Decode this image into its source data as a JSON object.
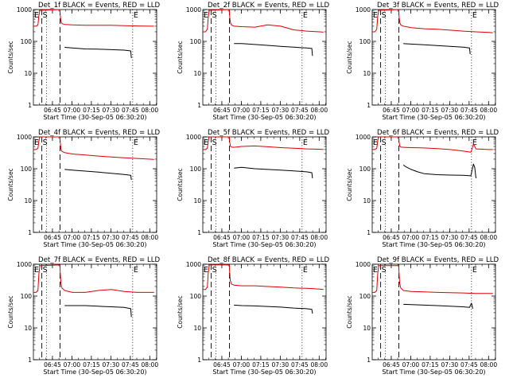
{
  "colors": {
    "events": "#000000",
    "lld": "#e00000",
    "axis": "#000000"
  },
  "shared": {
    "xlabel": "Start Time (30-Sep-05 06:30:20)",
    "ylabel": "Counts/sec",
    "x_tick_labels": [
      "06:45",
      "07:00",
      "07:15",
      "07:30",
      "07:45",
      "08:00"
    ],
    "y_tick_labels": [
      "1",
      "10",
      "100",
      "1000"
    ],
    "marker_labels": {
      "left_E": "E",
      "S": "S",
      "right_E": "E"
    }
  },
  "chart_data": [
    {
      "type": "line",
      "title": "Det_1f BLACK = Events, RED = LLD",
      "xlabel": "Start Time (30-Sep-05 06:30:20)",
      "ylabel": "Counts/sec",
      "y_scale": "log",
      "ylim": [
        1,
        1000
      ],
      "xlim_minutes": [
        0,
        95
      ],
      "markers": {
        "dashed": [
          6.5,
          20.5
        ],
        "dotted": [
          10.2,
          76.5
        ]
      },
      "series": [
        {
          "color": "red",
          "x": [
            0,
            2,
            3.5,
            4.2,
            5,
            6.2,
            20.4,
            20.7,
            21.2,
            22,
            24,
            30,
            40,
            50,
            60,
            70,
            80,
            90,
            93
          ],
          "y": [
            300,
            300,
            330,
            650,
            950,
            950,
            1000,
            650,
            420,
            360,
            340,
            330,
            320,
            320,
            320,
            310,
            305,
            300,
            300
          ]
        },
        {
          "color": "black",
          "x": [
            24,
            30,
            40,
            50,
            60,
            70,
            75,
            75.5
          ],
          "y": [
            65,
            62,
            58,
            57,
            55,
            53,
            50,
            30
          ]
        }
      ]
    },
    {
      "type": "line",
      "title": "Det_2f BLACK = Events, RED = LLD",
      "xlabel": "Start Time (30-Sep-05 06:30:20)",
      "ylabel": "Counts/sec",
      "y_scale": "log",
      "ylim": [
        1,
        1000
      ],
      "xlim_minutes": [
        0,
        95
      ],
      "markers": {
        "dashed": [
          6.5,
          20.5
        ],
        "dotted": [
          10.2,
          76.5
        ]
      },
      "series": [
        {
          "color": "red",
          "x": [
            0,
            2,
            3.5,
            4.2,
            5,
            6.2,
            20.4,
            20.7,
            21.2,
            22,
            24,
            30,
            40,
            50,
            60,
            70,
            80,
            90,
            93
          ],
          "y": [
            200,
            200,
            240,
            600,
            950,
            950,
            1000,
            600,
            400,
            330,
            300,
            290,
            280,
            330,
            300,
            230,
            210,
            200,
            195
          ]
        },
        {
          "color": "black",
          "x": [
            24,
            30,
            40,
            50,
            60,
            70,
            80,
            84,
            84.5
          ],
          "y": [
            85,
            85,
            80,
            75,
            70,
            66,
            62,
            60,
            35
          ]
        }
      ]
    },
    {
      "type": "line",
      "title": "Det_3f BLACK = Events, RED = LLD",
      "xlabel": "Start Time (30-Sep-05 06:30:20)",
      "ylabel": "Counts/sec",
      "y_scale": "log",
      "ylim": [
        1,
        1000
      ],
      "xlim_minutes": [
        0,
        95
      ],
      "markers": {
        "dashed": [
          6.5,
          20.5
        ],
        "dotted": [
          10.2,
          76.5
        ]
      },
      "series": [
        {
          "color": "red",
          "x": [
            0,
            2,
            3.5,
            4.2,
            5,
            6.2,
            20.4,
            20.7,
            21.2,
            22,
            24,
            30,
            40,
            50,
            60,
            70,
            80,
            90,
            93
          ],
          "y": [
            200,
            200,
            240,
            600,
            950,
            950,
            1000,
            600,
            400,
            330,
            300,
            270,
            250,
            240,
            225,
            210,
            200,
            190,
            185
          ]
        },
        {
          "color": "black",
          "x": [
            24,
            30,
            40,
            50,
            60,
            70,
            75,
            75.5
          ],
          "y": [
            85,
            82,
            78,
            74,
            70,
            66,
            62,
            40
          ]
        }
      ]
    },
    {
      "type": "line",
      "title": "Det_4f BLACK = Events, RED = LLD",
      "xlabel": "Start Time (30-Sep-05 06:30:20)",
      "ylabel": "Counts/sec",
      "y_scale": "log",
      "ylim": [
        1,
        1000
      ],
      "xlim_minutes": [
        0,
        95
      ],
      "markers": {
        "dashed": [
          6.5,
          20.5
        ],
        "dotted": [
          10.2,
          76.5
        ]
      },
      "series": [
        {
          "color": "red",
          "x": [
            0,
            2,
            3.5,
            4.2,
            5,
            6.2,
            20.4,
            20.7,
            21.2,
            22,
            24,
            30,
            40,
            50,
            60,
            70,
            80,
            90,
            93
          ],
          "y": [
            400,
            400,
            440,
            750,
            1000,
            1000,
            1000,
            650,
            420,
            350,
            320,
            290,
            270,
            250,
            235,
            220,
            210,
            200,
            195
          ]
        },
        {
          "color": "black",
          "x": [
            24,
            30,
            40,
            50,
            60,
            70,
            75,
            75.5
          ],
          "y": [
            95,
            90,
            84,
            78,
            72,
            66,
            62,
            45
          ]
        }
      ]
    },
    {
      "type": "line",
      "title": "Det_5f BLACK = Events, RED = LLD",
      "xlabel": "Start Time (30-Sep-05 06:30:20)",
      "ylabel": "Counts/sec",
      "y_scale": "log",
      "ylim": [
        1,
        1000
      ],
      "xlim_minutes": [
        0,
        95
      ],
      "markers": {
        "dashed": [
          6.5,
          20.5
        ],
        "dotted": [
          10.2,
          76.5
        ]
      },
      "series": [
        {
          "color": "red",
          "x": [
            0,
            2,
            3.5,
            4.2,
            5,
            6.2,
            20.4,
            20.7,
            21.2,
            22,
            24,
            30,
            40,
            50,
            60,
            70,
            80,
            90,
            93
          ],
          "y": [
            400,
            400,
            440,
            750,
            1000,
            1000,
            1000,
            700,
            520,
            480,
            470,
            500,
            520,
            490,
            460,
            440,
            420,
            410,
            400
          ]
        },
        {
          "color": "black",
          "x": [
            24,
            30,
            40,
            50,
            60,
            70,
            80,
            84,
            84.5
          ],
          "y": [
            105,
            110,
            100,
            95,
            90,
            85,
            80,
            75,
            50
          ]
        }
      ]
    },
    {
      "type": "line",
      "title": "Det_6f BLACK = Events, RED = LLD",
      "xlabel": "Start Time (30-Sep-05 06:30:20)",
      "ylabel": "Counts/sec",
      "y_scale": "log",
      "ylim": [
        1,
        1000
      ],
      "xlim_minutes": [
        0,
        95
      ],
      "markers": {
        "dashed": [
          6.5,
          20.5
        ],
        "dotted": [
          10.2,
          76.5
        ]
      },
      "series": [
        {
          "color": "red",
          "x": [
            0,
            2,
            3.5,
            4.2,
            5,
            6.2,
            20.4,
            20.7,
            21.2,
            22,
            24,
            30,
            40,
            50,
            60,
            70,
            76,
            77,
            78,
            80,
            90,
            93
          ],
          "y": [
            400,
            400,
            440,
            750,
            1000,
            1000,
            1000,
            700,
            520,
            480,
            470,
            460,
            450,
            430,
            400,
            360,
            330,
            420,
            600,
            420,
            400,
            400
          ]
        },
        {
          "color": "black",
          "x": [
            24,
            26,
            30,
            35,
            40,
            50,
            60,
            70,
            76,
            77,
            78,
            79,
            80
          ],
          "y": [
            130,
            115,
            95,
            80,
            70,
            65,
            63,
            62,
            60,
            90,
            140,
            110,
            50
          ]
        }
      ]
    },
    {
      "type": "line",
      "title": "Det_7f BLACK = Events, RED = LLD",
      "xlabel": "Start Time (30-Sep-05 06:30:20)",
      "ylabel": "Counts/sec",
      "y_scale": "log",
      "ylim": [
        1,
        1000
      ],
      "xlim_minutes": [
        0,
        95
      ],
      "markers": {
        "dashed": [
          6.5,
          20.5
        ],
        "dotted": [
          10.2,
          76.5
        ]
      },
      "series": [
        {
          "color": "red",
          "x": [
            0,
            2,
            3.5,
            4.2,
            5,
            6.2,
            20.4,
            20.7,
            21.2,
            22,
            24,
            30,
            40,
            50,
            60,
            70,
            80,
            90,
            93
          ],
          "y": [
            130,
            130,
            150,
            500,
            900,
            900,
            950,
            500,
            250,
            180,
            150,
            130,
            130,
            150,
            160,
            140,
            130,
            130,
            130
          ]
        },
        {
          "color": "black",
          "x": [
            24,
            30,
            40,
            50,
            60,
            70,
            75,
            75.5
          ],
          "y": [
            50,
            50,
            50,
            48,
            46,
            44,
            40,
            22
          ]
        }
      ]
    },
    {
      "type": "line",
      "title": "Det_8f BLACK = Events, RED = LLD",
      "xlabel": "Start Time (30-Sep-05 06:30:20)",
      "ylabel": "Counts/sec",
      "y_scale": "log",
      "ylim": [
        1,
        1000
      ],
      "xlim_minutes": [
        0,
        95
      ],
      "markers": {
        "dashed": [
          6.5,
          20.5
        ],
        "dotted": [
          10.2,
          76.5
        ]
      },
      "series": [
        {
          "color": "red",
          "x": [
            0,
            2,
            3.5,
            4.2,
            5,
            6.2,
            20.4,
            20.7,
            21.2,
            22,
            24,
            30,
            40,
            50,
            60,
            70,
            80,
            90,
            93
          ],
          "y": [
            160,
            160,
            190,
            550,
            950,
            950,
            950,
            550,
            300,
            240,
            220,
            210,
            210,
            200,
            190,
            180,
            175,
            165,
            160
          ]
        },
        {
          "color": "black",
          "x": [
            24,
            30,
            40,
            50,
            60,
            70,
            80,
            84,
            84.5
          ],
          "y": [
            52,
            50,
            49,
            47,
            45,
            42,
            40,
            38,
            28
          ]
        }
      ]
    },
    {
      "type": "line",
      "title": "Det_9f BLACK = Events, RED = LLD",
      "xlabel": "Start Time (30-Sep-05 06:30:20)",
      "ylabel": "Counts/sec",
      "y_scale": "log",
      "ylim": [
        1,
        1000
      ],
      "xlim_minutes": [
        0,
        95
      ],
      "markers": {
        "dashed": [
          6.5,
          20.5
        ],
        "dotted": [
          10.2,
          76.5
        ]
      },
      "series": [
        {
          "color": "red",
          "x": [
            0,
            2,
            3.5,
            4.2,
            5,
            6.2,
            20.4,
            20.7,
            21.2,
            22,
            24,
            30,
            40,
            50,
            60,
            70,
            80,
            90,
            93
          ],
          "y": [
            130,
            130,
            150,
            500,
            900,
            900,
            900,
            500,
            250,
            180,
            150,
            140,
            135,
            130,
            128,
            125,
            120,
            120,
            120
          ]
        },
        {
          "color": "black",
          "x": [
            24,
            30,
            40,
            50,
            60,
            70,
            75,
            76.5,
            77,
            77.5
          ],
          "y": [
            55,
            54,
            52,
            50,
            48,
            46,
            44,
            60,
            50,
            40
          ]
        }
      ]
    }
  ]
}
